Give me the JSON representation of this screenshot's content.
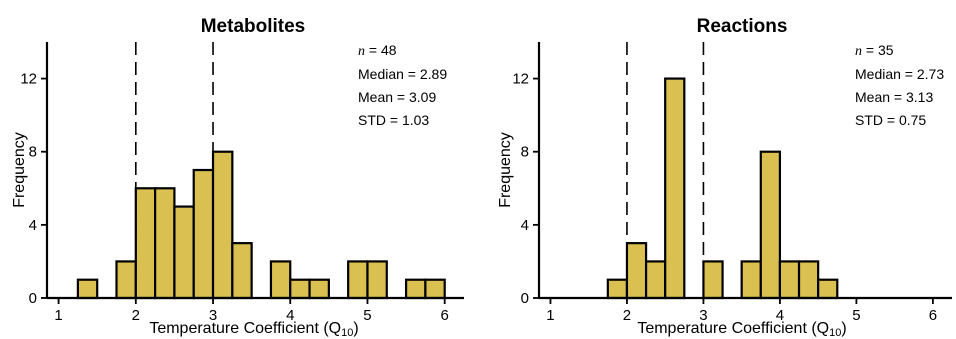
{
  "chart_data": [
    {
      "type": "bar",
      "title": "Metabolites",
      "xlabel": "Temperature Coefficient (Q",
      "xlabel_sub": "10",
      "xlabel_close": ")",
      "ylabel": "Frequency",
      "xlim": [
        0.85,
        6.25
      ],
      "ylim": [
        0,
        14
      ],
      "xticks": [
        1,
        2,
        3,
        4,
        5,
        6
      ],
      "yticks": [
        0,
        4,
        8,
        12
      ],
      "bin_width": 0.25,
      "bins": [
        {
          "x0": 1.25,
          "count": 1
        },
        {
          "x0": 1.75,
          "count": 2
        },
        {
          "x0": 2.0,
          "count": 6
        },
        {
          "x0": 2.25,
          "count": 6
        },
        {
          "x0": 2.5,
          "count": 5
        },
        {
          "x0": 2.75,
          "count": 7
        },
        {
          "x0": 3.0,
          "count": 8
        },
        {
          "x0": 3.25,
          "count": 3
        },
        {
          "x0": 3.75,
          "count": 2
        },
        {
          "x0": 4.0,
          "count": 1
        },
        {
          "x0": 4.25,
          "count": 1
        },
        {
          "x0": 4.75,
          "count": 2
        },
        {
          "x0": 5.0,
          "count": 2
        },
        {
          "x0": 5.5,
          "count": 1
        },
        {
          "x0": 5.75,
          "count": 1
        }
      ],
      "reference_lines": [
        2,
        3
      ],
      "stats": {
        "n_label": "n",
        "n_value": " = 48",
        "median": "Median = 2.89",
        "mean": "Mean = 3.09",
        "std": "STD = 1.03"
      }
    },
    {
      "type": "bar",
      "title": "Reactions",
      "xlabel": "Temperature Coefficient (Q",
      "xlabel_sub": "10",
      "xlabel_close": ")",
      "ylabel": "Frequency",
      "xlim": [
        0.85,
        6.25
      ],
      "ylim": [
        0,
        14
      ],
      "xticks": [
        1,
        2,
        3,
        4,
        5,
        6
      ],
      "yticks": [
        0,
        4,
        8,
        12
      ],
      "bin_width": 0.25,
      "bins": [
        {
          "x0": 1.75,
          "count": 1
        },
        {
          "x0": 2.0,
          "count": 3
        },
        {
          "x0": 2.25,
          "count": 2
        },
        {
          "x0": 2.5,
          "count": 12
        },
        {
          "x0": 3.0,
          "count": 2
        },
        {
          "x0": 3.5,
          "count": 2
        },
        {
          "x0": 3.75,
          "count": 8
        },
        {
          "x0": 4.0,
          "count": 2
        },
        {
          "x0": 4.25,
          "count": 2
        },
        {
          "x0": 4.5,
          "count": 1
        }
      ],
      "reference_lines": [
        2,
        3
      ],
      "stats": {
        "n_label": "n",
        "n_value": " = 35",
        "median": "Median = 2.73",
        "mean": "Mean = 3.13",
        "std": "STD = 0.75"
      }
    }
  ],
  "colors": {
    "bar_fill": "#d9c051",
    "bar_stroke": "#000000"
  }
}
